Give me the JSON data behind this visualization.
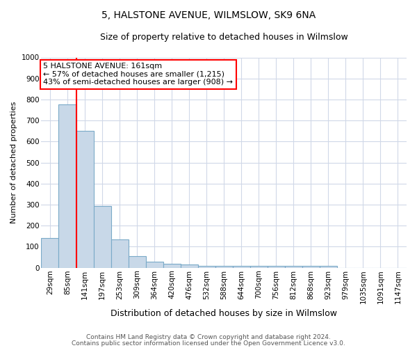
{
  "title": "5, HALSTONE AVENUE, WILMSLOW, SK9 6NA",
  "subtitle": "Size of property relative to detached houses in Wilmslow",
  "xlabel": "Distribution of detached houses by size in Wilmslow",
  "ylabel": "Number of detached properties",
  "categories": [
    "29sqm",
    "85sqm",
    "141sqm",
    "197sqm",
    "253sqm",
    "309sqm",
    "364sqm",
    "420sqm",
    "476sqm",
    "532sqm",
    "588sqm",
    "644sqm",
    "700sqm",
    "756sqm",
    "812sqm",
    "868sqm",
    "923sqm",
    "979sqm",
    "1035sqm",
    "1091sqm",
    "1147sqm"
  ],
  "values": [
    140,
    775,
    650,
    295,
    135,
    55,
    28,
    18,
    15,
    8,
    8,
    10,
    8,
    8,
    8,
    8,
    10,
    0,
    0,
    0,
    0
  ],
  "bar_color": "#c8d8e8",
  "bar_edge_color": "#7aaac8",
  "red_line_x": 1.5,
  "ylim": [
    0,
    1000
  ],
  "yticks": [
    0,
    100,
    200,
    300,
    400,
    500,
    600,
    700,
    800,
    900,
    1000
  ],
  "annotation_line1": "5 HALSTONE AVENUE: 161sqm",
  "annotation_line2": "← 57% of detached houses are smaller (1,215)",
  "annotation_line3": "43% of semi-detached houses are larger (908) →",
  "footnote1": "Contains HM Land Registry data © Crown copyright and database right 2024.",
  "footnote2": "Contains public sector information licensed under the Open Government Licence v3.0.",
  "background_color": "#ffffff",
  "grid_color": "#d0d8e8",
  "title_fontsize": 10,
  "subtitle_fontsize": 9,
  "ylabel_fontsize": 8,
  "xlabel_fontsize": 9,
  "tick_fontsize": 7.5,
  "annot_fontsize": 8,
  "footnote_fontsize": 6.5
}
